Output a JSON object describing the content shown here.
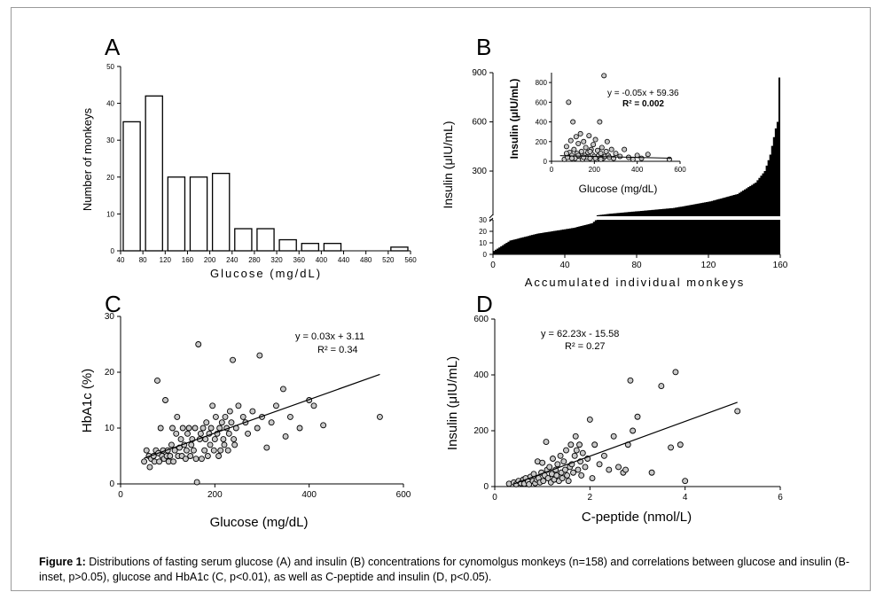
{
  "caption": {
    "label": "Figure 1:",
    "text": "Distributions of fasting serum glucose (A) and insulin (B) concentrations for cynomolgus monkeys (n=158) and correlations between glucose and insulin (B-inset, p>0.05), glucose and HbA1c (C, p<0.01), as well as C-peptide and insulin (D, p<0.05)."
  },
  "chart_data": [
    {
      "panel": "A",
      "type": "bar",
      "xlabel": "Glucose (mg/dL)",
      "ylabel": "Number of monkeys",
      "ylim": [
        0,
        50
      ],
      "yticks": [
        "0",
        "10",
        "20",
        "30",
        "40",
        "50"
      ],
      "xticks": [
        "40",
        "80",
        "120",
        "160",
        "200",
        "240",
        "280",
        "320",
        "360",
        "400",
        "440",
        "480",
        "520",
        "560"
      ],
      "bins": [
        [
          40,
          80
        ],
        [
          80,
          120
        ],
        [
          120,
          160
        ],
        [
          160,
          200
        ],
        [
          200,
          240
        ],
        [
          240,
          280
        ],
        [
          280,
          320
        ],
        [
          320,
          360
        ],
        [
          360,
          400
        ],
        [
          400,
          440
        ],
        [
          440,
          480
        ],
        [
          480,
          520
        ],
        [
          520,
          560
        ]
      ],
      "values": [
        35,
        42,
        20,
        20,
        21,
        6,
        6,
        3,
        2,
        2,
        0,
        0,
        1
      ]
    },
    {
      "panel": "B",
      "type": "bar",
      "xlabel": "Accumulated individual monkeys",
      "ylabel": "Insulin (μIU/mL)",
      "xlim": [
        0,
        160
      ],
      "xticks": [
        "0",
        "40",
        "80",
        "120",
        "160"
      ],
      "yticks_lower": [
        "0",
        "10",
        "20",
        "30"
      ],
      "yticks_upper": [
        "300",
        "600",
        "900"
      ],
      "axis_break": true,
      "n_monkeys": 158,
      "sorted_values_description": "individual insulin values sorted ascending",
      "anchor_points": [
        [
          0,
          2
        ],
        [
          10,
          12
        ],
        [
          25,
          18
        ],
        [
          45,
          23
        ],
        [
          55,
          27
        ],
        [
          65,
          40
        ],
        [
          80,
          55
        ],
        [
          100,
          75
        ],
        [
          120,
          115
        ],
        [
          135,
          160
        ],
        [
          145,
          230
        ],
        [
          150,
          300
        ],
        [
          153,
          400
        ],
        [
          156,
          560
        ],
        [
          157,
          600
        ],
        [
          158,
          870
        ]
      ],
      "inset": {
        "type": "scatter",
        "xlabel": "Glucose (mg/dL)",
        "ylabel": "Insulin (μIU/mL)",
        "xlim": [
          0,
          600
        ],
        "ylim": [
          0,
          900
        ],
        "xticks": [
          "0",
          "200",
          "400",
          "600"
        ],
        "yticks": [
          "0",
          "200",
          "400",
          "600",
          "800"
        ],
        "equation": "y = -0.05x + 59.36",
        "r2": "R² = 0.002",
        "fit": {
          "slope": -0.05,
          "intercept": 59.36
        },
        "points": [
          [
            60,
            20
          ],
          [
            70,
            150
          ],
          [
            75,
            40
          ],
          [
            80,
            600
          ],
          [
            85,
            90
          ],
          [
            90,
            210
          ],
          [
            95,
            60
          ],
          [
            100,
            400
          ],
          [
            105,
            120
          ],
          [
            110,
            30
          ],
          [
            115,
            250
          ],
          [
            120,
            80
          ],
          [
            125,
            180
          ],
          [
            130,
            50
          ],
          [
            135,
            280
          ],
          [
            140,
            100
          ],
          [
            145,
            20
          ],
          [
            150,
            200
          ],
          [
            155,
            60
          ],
          [
            160,
            140
          ],
          [
            165,
            40
          ],
          [
            170,
            90
          ],
          [
            175,
            260
          ],
          [
            180,
            30
          ],
          [
            185,
            120
          ],
          [
            190,
            70
          ],
          [
            195,
            170
          ],
          [
            200,
            50
          ],
          [
            205,
            220
          ],
          [
            210,
            20
          ],
          [
            215,
            110
          ],
          [
            220,
            60
          ],
          [
            225,
            400
          ],
          [
            230,
            80
          ],
          [
            235,
            140
          ],
          [
            240,
            30
          ],
          [
            245,
            870
          ],
          [
            250,
            50
          ],
          [
            255,
            100
          ],
          [
            260,
            200
          ],
          [
            265,
            60
          ],
          [
            270,
            40
          ],
          [
            280,
            120
          ],
          [
            290,
            30
          ],
          [
            300,
            80
          ],
          [
            320,
            50
          ],
          [
            340,
            120
          ],
          [
            360,
            40
          ],
          [
            380,
            20
          ],
          [
            400,
            60
          ],
          [
            420,
            30
          ],
          [
            450,
            70
          ],
          [
            550,
            20
          ],
          [
            70,
            80
          ],
          [
            95,
            30
          ],
          [
            125,
            60
          ],
          [
            150,
            40
          ],
          [
            180,
            100
          ],
          [
            205,
            30
          ],
          [
            230,
            20
          ]
        ]
      }
    },
    {
      "panel": "C",
      "type": "scatter",
      "xlabel": "Glucose (mg/dL)",
      "ylabel": "HbA1c (%)",
      "xlim": [
        0,
        600
      ],
      "ylim": [
        0,
        30
      ],
      "xticks": [
        "0",
        "200",
        "400",
        "600"
      ],
      "yticks": [
        "0",
        "10",
        "20",
        "30"
      ],
      "equation": "y = 0.03x + 3.11",
      "r2": "R² = 0.34",
      "fit": {
        "slope": 0.03,
        "intercept": 3.11,
        "xrange": [
          50,
          550
        ]
      },
      "points": [
        [
          50,
          4
        ],
        [
          55,
          6
        ],
        [
          60,
          5
        ],
        [
          62,
          3
        ],
        [
          65,
          4.5
        ],
        [
          70,
          5
        ],
        [
          72,
          4
        ],
        [
          75,
          6
        ],
        [
          78,
          18.5
        ],
        [
          80,
          5.5
        ],
        [
          82,
          4
        ],
        [
          85,
          10
        ],
        [
          88,
          5
        ],
        [
          90,
          6
        ],
        [
          92,
          4.5
        ],
        [
          95,
          15
        ],
        [
          98,
          5
        ],
        [
          100,
          6
        ],
        [
          102,
          4
        ],
        [
          105,
          5
        ],
        [
          108,
          7
        ],
        [
          110,
          10
        ],
        [
          112,
          4
        ],
        [
          115,
          6
        ],
        [
          118,
          9
        ],
        [
          120,
          12
        ],
        [
          122,
          5
        ],
        [
          125,
          6.5
        ],
        [
          128,
          8
        ],
        [
          130,
          5
        ],
        [
          132,
          10
        ],
        [
          135,
          7
        ],
        [
          138,
          4.5
        ],
        [
          140,
          6
        ],
        [
          142,
          9
        ],
        [
          145,
          10
        ],
        [
          148,
          5
        ],
        [
          150,
          7
        ],
        [
          152,
          8
        ],
        [
          155,
          6
        ],
        [
          158,
          10
        ],
        [
          160,
          4.5
        ],
        [
          162,
          0.3
        ],
        [
          165,
          25
        ],
        [
          168,
          8
        ],
        [
          170,
          9
        ],
        [
          172,
          4.5
        ],
        [
          175,
          10
        ],
        [
          178,
          6
        ],
        [
          180,
          8
        ],
        [
          182,
          11
        ],
        [
          185,
          5
        ],
        [
          188,
          9
        ],
        [
          190,
          7
        ],
        [
          192,
          10
        ],
        [
          195,
          14
        ],
        [
          198,
          6
        ],
        [
          200,
          8
        ],
        [
          202,
          12
        ],
        [
          205,
          9
        ],
        [
          208,
          5
        ],
        [
          210,
          10
        ],
        [
          212,
          6
        ],
        [
          215,
          11
        ],
        [
          218,
          8
        ],
        [
          220,
          7
        ],
        [
          222,
          12
        ],
        [
          225,
          10
        ],
        [
          228,
          6
        ],
        [
          230,
          9
        ],
        [
          232,
          13
        ],
        [
          235,
          11
        ],
        [
          238,
          22.2
        ],
        [
          240,
          8
        ],
        [
          242,
          7
        ],
        [
          245,
          10
        ],
        [
          250,
          14
        ],
        [
          260,
          12
        ],
        [
          265,
          11
        ],
        [
          270,
          9
        ],
        [
          280,
          13
        ],
        [
          290,
          10
        ],
        [
          295,
          23
        ],
        [
          300,
          12
        ],
        [
          310,
          6.5
        ],
        [
          320,
          11
        ],
        [
          330,
          14
        ],
        [
          345,
          17
        ],
        [
          350,
          8.5
        ],
        [
          360,
          12
        ],
        [
          380,
          10
        ],
        [
          400,
          15
        ],
        [
          410,
          14
        ],
        [
          430,
          10.5
        ],
        [
          550,
          12
        ]
      ]
    },
    {
      "panel": "D",
      "type": "scatter",
      "xlabel": "C-peptide (nmol/L)",
      "ylabel": "Insulin (μIU/mL)",
      "xlim": [
        0,
        6
      ],
      "ylim": [
        0,
        600
      ],
      "xticks": [
        "0",
        "2",
        "4",
        "6"
      ],
      "yticks": [
        "0",
        "200",
        "400",
        "600"
      ],
      "equation": "y = 62.23x - 15.58",
      "r2": "R² = 0.27",
      "fit": {
        "slope": 62.23,
        "intercept": -15.58,
        "xrange": [
          0.4,
          5.1
        ]
      },
      "points": [
        [
          0.3,
          10
        ],
        [
          0.4,
          15
        ],
        [
          0.45,
          8
        ],
        [
          0.5,
          20
        ],
        [
          0.55,
          12
        ],
        [
          0.6,
          25
        ],
        [
          0.62,
          10
        ],
        [
          0.65,
          30
        ],
        [
          0.7,
          18
        ],
        [
          0.72,
          8
        ],
        [
          0.75,
          35
        ],
        [
          0.8,
          20
        ],
        [
          0.82,
          45
        ],
        [
          0.85,
          12
        ],
        [
          0.88,
          25
        ],
        [
          0.9,
          90
        ],
        [
          0.92,
          30
        ],
        [
          0.95,
          15
        ],
        [
          0.98,
          50
        ],
        [
          1.0,
          85
        ],
        [
          1.02,
          20
        ],
        [
          1.05,
          40
        ],
        [
          1.08,
          160
        ],
        [
          1.1,
          60
        ],
        [
          1.12,
          30
        ],
        [
          1.15,
          70
        ],
        [
          1.18,
          15
        ],
        [
          1.2,
          45
        ],
        [
          1.22,
          100
        ],
        [
          1.25,
          25
        ],
        [
          1.28,
          60
        ],
        [
          1.3,
          40
        ],
        [
          1.32,
          80
        ],
        [
          1.35,
          20
        ],
        [
          1.38,
          110
        ],
        [
          1.4,
          50
        ],
        [
          1.42,
          30
        ],
        [
          1.45,
          90
        ],
        [
          1.48,
          60
        ],
        [
          1.5,
          130
        ],
        [
          1.52,
          40
        ],
        [
          1.55,
          20
        ],
        [
          1.58,
          70
        ],
        [
          1.6,
          150
        ],
        [
          1.62,
          80
        ],
        [
          1.65,
          50
        ],
        [
          1.68,
          110
        ],
        [
          1.7,
          180
        ],
        [
          1.72,
          130
        ],
        [
          1.75,
          60
        ],
        [
          1.78,
          150
        ],
        [
          1.8,
          90
        ],
        [
          1.82,
          40
        ],
        [
          1.85,
          120
        ],
        [
          1.9,
          70
        ],
        [
          1.95,
          100
        ],
        [
          2.0,
          240
        ],
        [
          2.05,
          30
        ],
        [
          2.1,
          150
        ],
        [
          2.2,
          80
        ],
        [
          2.3,
          110
        ],
        [
          2.4,
          60
        ],
        [
          2.5,
          180
        ],
        [
          2.6,
          70
        ],
        [
          2.7,
          50
        ],
        [
          2.75,
          60
        ],
        [
          2.8,
          150
        ],
        [
          2.9,
          200
        ],
        [
          2.85,
          380
        ],
        [
          3.0,
          250
        ],
        [
          3.3,
          50
        ],
        [
          3.5,
          360
        ],
        [
          3.7,
          140
        ],
        [
          3.8,
          410
        ],
        [
          3.9,
          150
        ],
        [
          4.0,
          20
        ],
        [
          5.1,
          270
        ]
      ]
    }
  ],
  "panel_labels": {
    "A": "A",
    "B": "B",
    "C": "C",
    "D": "D"
  },
  "axis_text": {
    "a_xlabel": "Glucose (mg/dL)",
    "a_ylabel": "Number of monkeys",
    "b_xlabel": "Accumulated individual monkeys",
    "b_ylabel": "Insulin (μIU/mL)",
    "b_inset_xlabel": "Glucose (mg/dL)",
    "b_inset_ylabel": "Insulin (μIU/mL)",
    "b_inset_eq": "y = -0.05x + 59.36",
    "b_inset_r2": "R² = 0.002",
    "c_xlabel": "Glucose (mg/dL)",
    "c_ylabel": "HbA1c (%)",
    "c_eq": "y = 0.03x + 3.11",
    "c_r2": "R² = 0.34",
    "d_xlabel": "C-peptide (nmol/L)",
    "d_ylabel": "Insulin (μIU/mL)",
    "d_eq": "y = 62.23x - 15.58",
    "d_r2": "R² = 0.27"
  }
}
